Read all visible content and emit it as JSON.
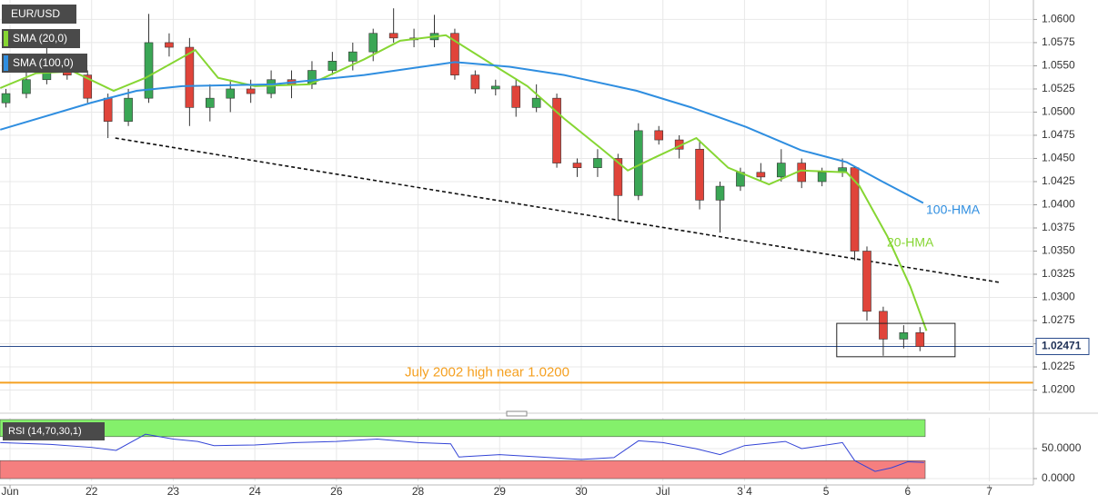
{
  "chart_data": [
    {
      "type": "candlestick",
      "symbol": "EUR/USD",
      "x": [
        -0.05,
        0.2,
        0.45,
        0.7,
        0.95,
        1.2,
        1.45,
        1.7,
        1.95,
        2.2,
        2.45,
        2.7,
        2.95,
        3.2,
        3.45,
        3.7,
        3.95,
        4.2,
        4.45,
        4.7,
        4.95,
        5.2,
        5.45,
        5.7,
        5.95,
        6.2,
        6.45,
        6.7,
        6.95,
        7.2,
        7.45,
        7.7,
        7.95,
        8.2,
        8.45,
        8.7,
        8.95,
        9.2,
        9.45,
        9.7,
        9.95,
        10.2,
        10.35,
        10.5,
        10.7,
        10.95,
        11.15
      ],
      "open": [
        1.051,
        1.052,
        1.0535,
        1.055,
        1.054,
        1.0515,
        1.049,
        1.0515,
        1.0575,
        1.057,
        1.0505,
        1.0515,
        1.0525,
        1.052,
        1.0535,
        1.053,
        1.0545,
        1.0555,
        1.0565,
        1.0585,
        1.058,
        1.0578,
        1.0585,
        1.054,
        1.0525,
        1.0528,
        1.0505,
        1.0515,
        1.0445,
        1.044,
        1.045,
        1.041,
        1.048,
        1.047,
        1.046,
        1.0405,
        1.042,
        1.0435,
        1.043,
        1.0445,
        1.0425,
        1.0435,
        1.044,
        1.035,
        1.0285,
        1.0255,
        1.0262
      ],
      "high": [
        1.0525,
        1.0545,
        1.058,
        1.056,
        1.0545,
        1.052,
        1.0525,
        1.0606,
        1.0585,
        1.058,
        1.053,
        1.0535,
        1.0535,
        1.0545,
        1.0545,
        1.0555,
        1.0565,
        1.0575,
        1.059,
        1.0612,
        1.059,
        1.0605,
        1.059,
        1.0545,
        1.0535,
        1.0535,
        1.053,
        1.052,
        1.045,
        1.046,
        1.0455,
        1.0488,
        1.0485,
        1.0475,
        1.047,
        1.0425,
        1.044,
        1.0445,
        1.046,
        1.045,
        1.044,
        1.045,
        1.0442,
        1.0355,
        1.029,
        1.027,
        1.0268
      ],
      "low": [
        1.0505,
        1.0515,
        1.053,
        1.0535,
        1.051,
        1.0472,
        1.0485,
        1.051,
        1.056,
        1.0485,
        1.049,
        1.05,
        1.051,
        1.0515,
        1.0515,
        1.0525,
        1.054,
        1.0545,
        1.0555,
        1.0575,
        1.057,
        1.057,
        1.0535,
        1.052,
        1.0518,
        1.0495,
        1.05,
        1.044,
        1.043,
        1.043,
        1.0383,
        1.0405,
        1.0465,
        1.045,
        1.0395,
        1.037,
        1.0415,
        1.0425,
        1.0425,
        1.0418,
        1.042,
        1.043,
        1.034,
        1.0275,
        1.0237,
        1.0245,
        1.0242
      ],
      "close": [
        1.052,
        1.0535,
        1.055,
        1.054,
        1.0515,
        1.049,
        1.0515,
        1.0575,
        1.057,
        1.0505,
        1.0515,
        1.0525,
        1.052,
        1.0535,
        1.053,
        1.0545,
        1.0555,
        1.0565,
        1.0585,
        1.058,
        1.0578,
        1.0585,
        1.054,
        1.0525,
        1.0528,
        1.0505,
        1.0515,
        1.0445,
        1.044,
        1.045,
        1.041,
        1.048,
        1.047,
        1.046,
        1.0405,
        1.042,
        1.0435,
        1.043,
        1.0445,
        1.0425,
        1.0435,
        1.044,
        1.035,
        1.0285,
        1.0255,
        1.0262,
        1.0247
      ],
      "up_color": "#3aa655",
      "down_color": "#e0443a",
      "series": [
        {
          "name": "SMA (20,0)",
          "label": "20-HMA",
          "color": "#86d633",
          "x": [
            -0.12,
            0.32,
            0.77,
            1.27,
            1.66,
            2.27,
            2.55,
            3.0,
            3.67,
            4.34,
            4.78,
            5.34,
            5.9,
            6.34,
            6.79,
            7.24,
            7.57,
            7.9,
            8.41,
            8.8,
            9.3,
            9.69,
            10.25,
            10.41,
            10.75,
            11.03,
            11.23
          ],
          "values": [
            1.0526,
            1.0542,
            1.0544,
            1.0523,
            1.0537,
            1.0567,
            1.0537,
            1.0528,
            1.053,
            1.0557,
            1.0577,
            1.0583,
            1.0552,
            1.0528,
            1.0493,
            1.0461,
            1.0437,
            1.0451,
            1.0472,
            1.044,
            1.0422,
            1.0437,
            1.0435,
            1.042,
            1.0366,
            1.0312,
            1.0264
          ]
        },
        {
          "name": "SMA (100,0)",
          "label": "100-HMA",
          "color": "#2f8ee0",
          "x": [
            -0.12,
            0.99,
            1.55,
            2.11,
            3.22,
            4.34,
            5.45,
            6.12,
            6.79,
            7.68,
            8.35,
            9.02,
            9.69,
            10.25,
            10.69,
            11.19
          ],
          "values": [
            1.0481,
            1.051,
            1.0523,
            1.0528,
            1.053,
            1.054,
            1.0554,
            1.0549,
            1.054,
            1.0523,
            1.0505,
            1.0484,
            1.0459,
            1.0446,
            1.0425,
            1.0402
          ]
        }
      ],
      "trendline": {
        "x": [
          1.29,
          12.14
        ],
        "values": [
          1.0472,
          1.0316
        ]
      },
      "support": {
        "value": 1.0208,
        "label": "July 2002 high near 1.0200",
        "color": "#f5a020"
      },
      "last_price": 1.02471,
      "box": {
        "x": [
          10.13,
          11.58
        ],
        "values": [
          1.0236,
          1.0272
        ]
      },
      "xlim": [
        -0.1227,
        12.54
      ],
      "xticks": [
        {
          "value": 0,
          "label": "Jun"
        },
        {
          "value": 1,
          "label": "22"
        },
        {
          "value": 2,
          "label": "23"
        },
        {
          "value": 3,
          "label": "24"
        },
        {
          "value": 4,
          "label": "26"
        },
        {
          "value": 5,
          "label": "28"
        },
        {
          "value": 6,
          "label": "29"
        },
        {
          "value": 7,
          "label": "30"
        },
        {
          "value": 8,
          "label": "Jul"
        },
        {
          "value": 9,
          "label": "3 4"
        },
        {
          "value": 10,
          "label": "5"
        },
        {
          "value": 11,
          "label": "6"
        },
        {
          "value": 12,
          "label": "7"
        }
      ],
      "ylim": [
        1.0178,
        1.0621
      ],
      "yticks": [
        {
          "value": 1.02,
          "label": "1.0200"
        },
        {
          "value": 1.0225,
          "label": "1.0225"
        },
        {
          "value": 1.025,
          "label": "1.0250"
        },
        {
          "value": 1.0275,
          "label": "1.0275"
        },
        {
          "value": 1.03,
          "label": "1.0300"
        },
        {
          "value": 1.0325,
          "label": "1.0325"
        },
        {
          "value": 1.035,
          "label": "1.0350"
        },
        {
          "value": 1.0375,
          "label": "1.0375"
        },
        {
          "value": 1.04,
          "label": "1.0400"
        },
        {
          "value": 1.0425,
          "label": "1.0425"
        },
        {
          "value": 1.045,
          "label": "1.0450"
        },
        {
          "value": 1.0475,
          "label": "1.0475"
        },
        {
          "value": 1.05,
          "label": "1.0500"
        },
        {
          "value": 1.0525,
          "label": "1.0525"
        },
        {
          "value": 1.055,
          "label": "1.0550"
        },
        {
          "value": 1.0575,
          "label": "1.0575"
        },
        {
          "value": 1.06,
          "label": "1.0600"
        }
      ],
      "grid": true
    },
    {
      "type": "line",
      "title": "RSI (14,70,30,1)",
      "color": "#3344d6",
      "x": [
        -0.12,
        0.5,
        1.0,
        1.3,
        1.66,
        2.0,
        2.3,
        2.5,
        3.0,
        3.5,
        4.0,
        4.5,
        5.0,
        5.4,
        5.5,
        6.0,
        6.5,
        7.0,
        7.4,
        7.7,
        8.0,
        8.4,
        8.7,
        9.0,
        9.5,
        9.7,
        10.2,
        10.35,
        10.6,
        10.8,
        11.0,
        11.2
      ],
      "values": [
        60,
        57,
        52,
        47,
        74,
        66,
        62,
        55,
        56,
        60,
        62,
        66,
        60,
        58,
        36,
        40,
        36,
        32,
        35,
        63,
        60,
        50,
        40,
        55,
        62,
        50,
        60,
        30,
        12,
        18,
        28,
        27
      ],
      "bands": [
        {
          "range": [
            70,
            100
          ],
          "color": "#84f06b"
        },
        {
          "range": [
            0,
            30
          ],
          "color": "#f57f7f"
        }
      ],
      "ylim": [
        -4.5,
        101.5
      ],
      "yticks": [
        {
          "value": 50,
          "label": "50.0000"
        },
        {
          "value": 0,
          "label": "0.0000"
        }
      ],
      "grid": true
    }
  ]
}
